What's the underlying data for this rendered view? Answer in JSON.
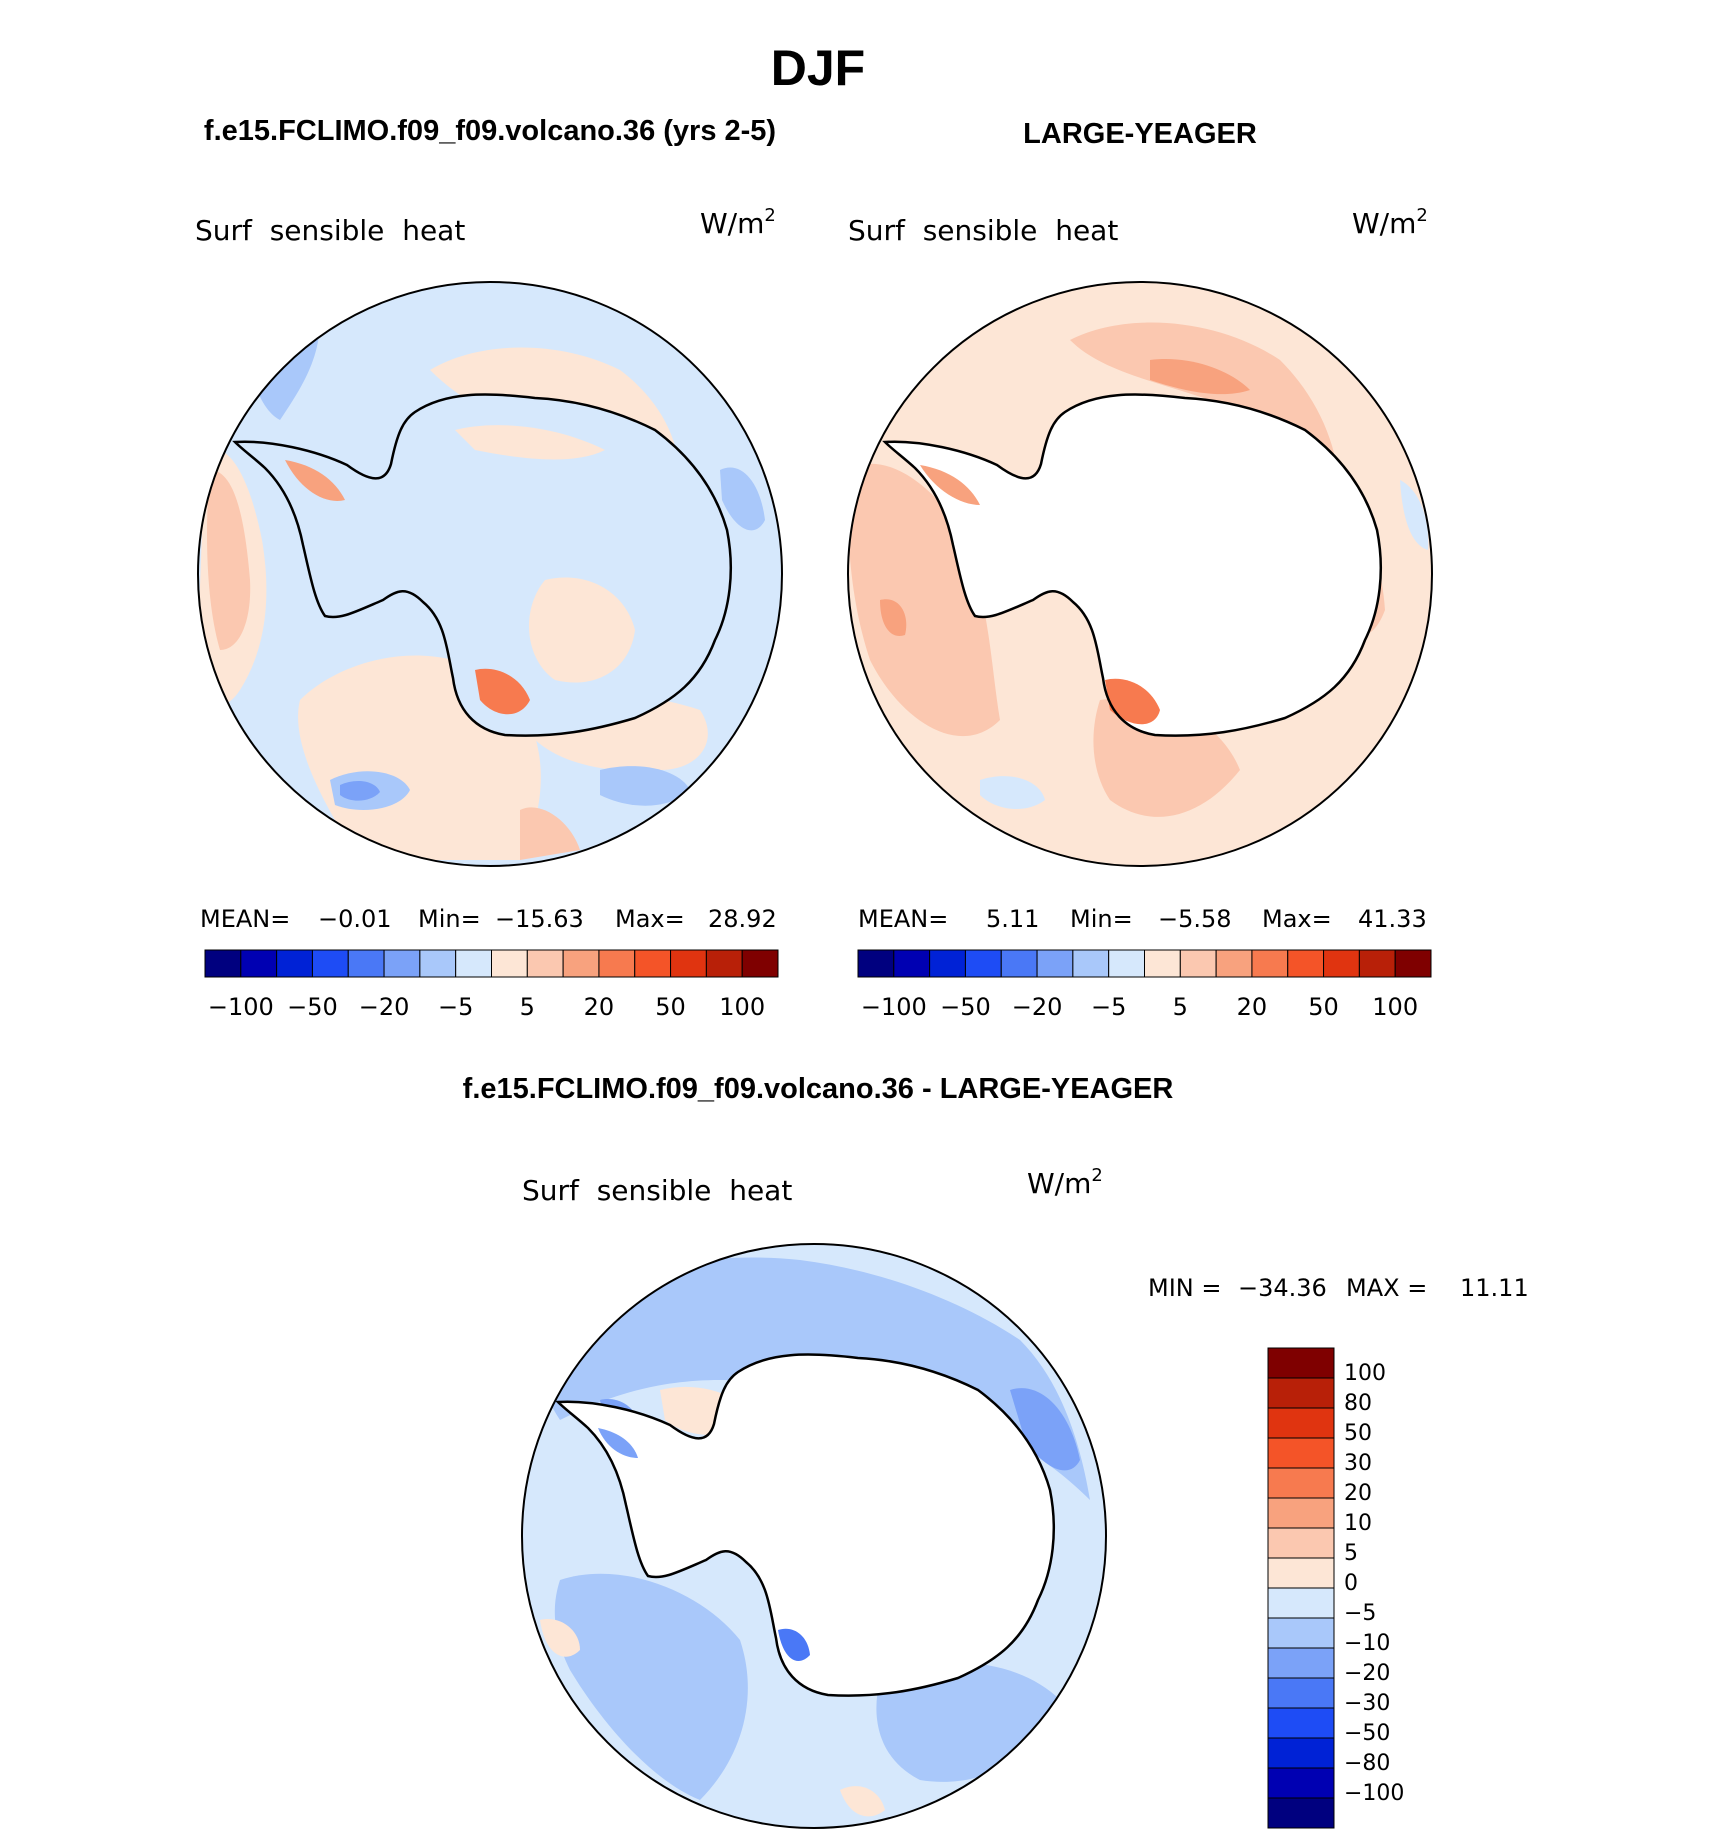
{
  "figure_title": "DJF",
  "panels": [
    {
      "case_title": "f.e15.FCLIMO.f09_f09.volcano.36 (yrs 2-5)",
      "variable": "Surf  sensible  heat",
      "units": "W/m",
      "units_exp": "2",
      "stats": {
        "mean_label": "MEAN=",
        "mean_value": "−0.01",
        "min_label": "Min=",
        "min_value": "−15.63",
        "max_label": "Max=",
        "max_value": "28.92"
      }
    },
    {
      "case_title": "LARGE-YEAGER",
      "variable": "Surf  sensible  heat",
      "units": "W/m",
      "units_exp": "2",
      "stats": {
        "mean_label": "MEAN=",
        "mean_value": "5.11",
        "min_label": "Min=",
        "min_value": "−5.58",
        "max_label": "Max=",
        "max_value": "41.33"
      }
    },
    {
      "case_title": "f.e15.FCLIMO.f09_f09.volcano.36 - LARGE-YEAGER",
      "variable": "Surf  sensible  heat",
      "units": "W/m",
      "units_exp": "2",
      "stats": {
        "min_label": "MIN =",
        "min_value": "−34.36",
        "max_label": "MAX =",
        "max_value": "11.11"
      }
    }
  ],
  "colorbar_h": {
    "colors": [
      "#00007f",
      "#0000b2",
      "#0022d6",
      "#1e4cf5",
      "#4a78f6",
      "#7ba2f8",
      "#a9c8fa",
      "#d6e8fc",
      "#fde6d6",
      "#fbc8b0",
      "#f8a27e",
      "#f77a4f",
      "#f45428",
      "#e03410",
      "#b82008",
      "#7f0000"
    ],
    "tick_labels": [
      "−100",
      "−50",
      "−20",
      "−5",
      "5",
      "20",
      "50",
      "100"
    ]
  },
  "colorbar_v": {
    "colors": [
      "#7f0000",
      "#b82008",
      "#e03410",
      "#f45428",
      "#f77a4f",
      "#f8a27e",
      "#fbc8b0",
      "#fde6d6",
      "#d6e8fc",
      "#a9c8fa",
      "#7ba2f8",
      "#4a78f6",
      "#1e4cf5",
      "#0022d6",
      "#0000b2",
      "#00007f"
    ],
    "tick_labels": [
      "100",
      "80",
      "50",
      "30",
      "20",
      "10",
      "5",
      "0",
      "−5",
      "−10",
      "−20",
      "−30",
      "−50",
      "−80",
      "−100"
    ]
  },
  "chart_data": [
    {
      "type": "heatmap",
      "title": "f.e15.FCLIMO.f09_f09.volcano.36 (yrs 2-5)",
      "variable": "Surf sensible heat",
      "units": "W/m2",
      "projection": "south polar stereographic",
      "season": "DJF",
      "mean": -0.01,
      "min": -15.63,
      "max": 28.92,
      "contour_levels": [
        -100,
        -80,
        -50,
        -30,
        -20,
        -10,
        -5,
        0,
        5,
        10,
        20,
        30,
        50,
        80,
        100
      ]
    },
    {
      "type": "heatmap",
      "title": "LARGE-YEAGER",
      "variable": "Surf sensible heat",
      "units": "W/m2",
      "projection": "south polar stereographic",
      "season": "DJF",
      "mean": 5.11,
      "min": -5.58,
      "max": 41.33,
      "contour_levels": [
        -100,
        -80,
        -50,
        -30,
        -20,
        -10,
        -5,
        0,
        5,
        10,
        20,
        30,
        50,
        80,
        100
      ]
    },
    {
      "type": "heatmap",
      "title": "f.e15.FCLIMO.f09_f09.volcano.36 - LARGE-YEAGER",
      "variable": "Surf sensible heat",
      "units": "W/m2",
      "projection": "south polar stereographic",
      "season": "DJF",
      "min": -34.36,
      "max": 11.11,
      "contour_levels": [
        -100,
        -80,
        -50,
        -30,
        -20,
        -10,
        -5,
        0,
        5,
        10,
        20,
        30,
        50,
        80,
        100
      ]
    }
  ]
}
